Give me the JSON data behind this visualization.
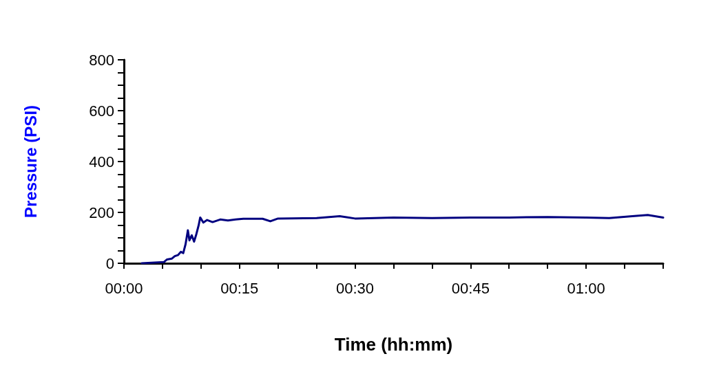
{
  "chart_data": {
    "type": "line",
    "xlabel": "Time (hh:mm)",
    "ylabel": "Pressure (PSI)",
    "xlim": [
      0,
      1.1667
    ],
    "ylim": [
      0,
      800
    ],
    "xticks": [
      {
        "value": 0,
        "label": "00:00"
      },
      {
        "value": 0.0833,
        "label": null
      },
      {
        "value": 0.1667,
        "label": null
      },
      {
        "value": 0.25,
        "label": "00:15"
      },
      {
        "value": 0.3333,
        "label": null
      },
      {
        "value": 0.4167,
        "label": null
      },
      {
        "value": 0.5,
        "label": "00:30"
      },
      {
        "value": 0.5833,
        "label": null
      },
      {
        "value": 0.6667,
        "label": null
      },
      {
        "value": 0.75,
        "label": "00:45"
      },
      {
        "value": 0.8333,
        "label": null
      },
      {
        "value": 0.9167,
        "label": null
      },
      {
        "value": 1,
        "label": "01:00"
      },
      {
        "value": 1.0833,
        "label": null
      },
      {
        "value": 1.1667,
        "label": null
      }
    ],
    "yticks": [
      0,
      {
        "value": 50,
        "label": null
      },
      {
        "value": 100,
        "label": null
      },
      {
        "value": 150,
        "label": null
      },
      200,
      {
        "value": 250,
        "label": null
      },
      {
        "value": 300,
        "label": null
      },
      {
        "value": 350,
        "label": null
      },
      400,
      {
        "value": 450,
        "label": null
      },
      {
        "value": 500,
        "label": null
      },
      {
        "value": 550,
        "label": null
      },
      600,
      {
        "value": 650,
        "label": null
      },
      {
        "value": 700,
        "label": null
      },
      {
        "value": 750,
        "label": null
      },
      800
    ],
    "grid": false,
    "marker": "none",
    "line_style": "solid",
    "series": [
      {
        "color": "#000080",
        "x": [
          0.0383,
          0.0867,
          0.0933,
          0.1033,
          0.11,
          0.1167,
          0.1233,
          0.1283,
          0.1333,
          0.1383,
          0.1417,
          0.1467,
          0.1517,
          0.1567,
          0.1617,
          0.165,
          0.1717,
          0.18,
          0.1917,
          0.2083,
          0.225,
          0.2417,
          0.2583,
          0.3,
          0.3167,
          0.3333,
          0.4167,
          0.4667,
          0.5,
          0.5833,
          0.6667,
          0.75,
          0.8333,
          0.9167,
          1,
          1.05,
          1.1,
          1.1333,
          1.1667
        ],
        "values": [
          0,
          5,
          15,
          18,
          28,
          32,
          45,
          40,
          75,
          130,
          90,
          110,
          85,
          115,
          150,
          180,
          160,
          170,
          162,
          172,
          168,
          172,
          175,
          175,
          165,
          176,
          178,
          185,
          176,
          180,
          178,
          180,
          180,
          182,
          180,
          178,
          185,
          190,
          180
        ]
      }
    ]
  }
}
